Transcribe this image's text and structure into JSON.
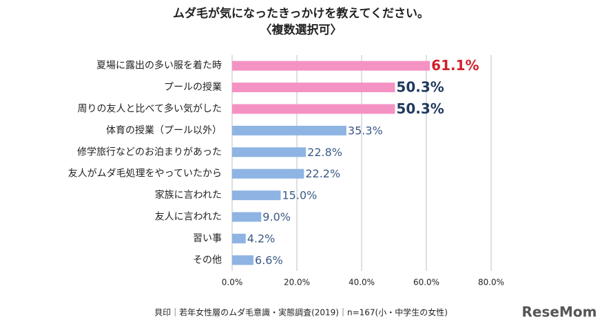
{
  "chart_data": {
    "type": "hbar",
    "title": "ムダ毛が気になったきっかけを教えてください。",
    "subtitle": "〈複数選択可〉",
    "categories": [
      "夏場に露出の多い服を着た時",
      "プールの授業",
      "周りの友人と比べて多い気がした",
      "体育の授業（プール以外）",
      "修学旅行などのお泊まりがあった",
      "友人がムダ毛処理をやっていたから",
      "家族に言われた",
      "友人に言われた",
      "習い事",
      "その他"
    ],
    "values": [
      61.1,
      50.3,
      50.3,
      35.3,
      22.8,
      22.2,
      15.0,
      9.0,
      4.2,
      6.6
    ],
    "value_labels": [
      "61.1%",
      "50.3%",
      "50.3%",
      "35.3%",
      "22.8%",
      "22.2%",
      "15.0%",
      "9.0%",
      "4.2%",
      "6.6%"
    ],
    "bar_colors": [
      "#f592c4",
      "#f592c4",
      "#f592c4",
      "#8eb4e3",
      "#8eb4e3",
      "#8eb4e3",
      "#8eb4e3",
      "#8eb4e3",
      "#8eb4e3",
      "#8eb4e3"
    ],
    "value_label_colors": [
      "#d0202a",
      "#1f3a5f",
      "#1f3a5f",
      "#3b5a86",
      "#3b5a86",
      "#3b5a86",
      "#3b5a86",
      "#3b5a86",
      "#3b5a86",
      "#3b5a86"
    ],
    "value_label_bold": [
      true,
      true,
      true,
      false,
      false,
      false,
      false,
      false,
      false,
      false
    ],
    "xlim": [
      0,
      80
    ],
    "xticks": [
      {
        "value": 0,
        "label": "0.0%"
      },
      {
        "value": 20,
        "label": "20.0%"
      },
      {
        "value": 40,
        "label": "40.0%"
      },
      {
        "value": 60,
        "label": "60.0%"
      },
      {
        "value": 80,
        "label": "80.0%"
      }
    ],
    "grid": true,
    "footer": "貝印｜若年女性層のムダ毛意識・実態調査(2019)｜n=167(小・中学生の女性)",
    "logo": "ReseMom"
  }
}
